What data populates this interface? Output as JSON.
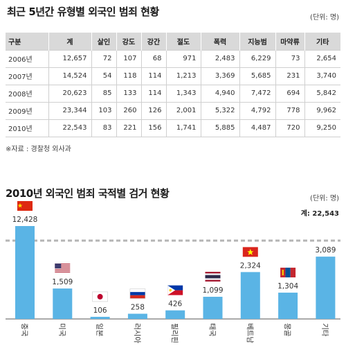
{
  "top": {
    "title": "최근 5년간 유형별 외국인 범죄 현황",
    "unit": "(단위: 명)",
    "source": "※자료 : 경찰청 외사과"
  },
  "table": {
    "headers": [
      "구분",
      "계",
      "살인",
      "강도",
      "강간",
      "절도",
      "폭력",
      "지능범",
      "마약류",
      "기타"
    ],
    "rows": [
      [
        "2006년",
        "12,657",
        "72",
        "107",
        "68",
        "971",
        "2,483",
        "6,229",
        "73",
        "2,654"
      ],
      [
        "2007년",
        "14,524",
        "54",
        "118",
        "114",
        "1,213",
        "3,369",
        "5,685",
        "231",
        "3,740"
      ],
      [
        "2008년",
        "20,623",
        "85",
        "133",
        "114",
        "1,343",
        "4,940",
        "7,472",
        "694",
        "5,842"
      ],
      [
        "2009년",
        "23,344",
        "103",
        "260",
        "126",
        "2,001",
        "5,322",
        "4,792",
        "778",
        "9,962"
      ],
      [
        "2010년",
        "22,543",
        "83",
        "221",
        "156",
        "1,741",
        "5,885",
        "4,487",
        "720",
        "9,250"
      ]
    ]
  },
  "chart_data": {
    "type": "bar",
    "title": "2010년 외국인 범죄 국적별 검거 현황",
    "unit": "(단위: 명)",
    "total_label": "계: 22,543",
    "categories": [
      "중국",
      "미국",
      "일본",
      "러시아",
      "필리핀",
      "태국",
      "베트남",
      "몽골",
      "기타"
    ],
    "values": [
      12428,
      1509,
      106,
      258,
      426,
      1099,
      2324,
      1304,
      3089
    ],
    "value_labels": [
      "12,428",
      "1,509",
      "106",
      "258",
      "426",
      "1,099",
      "2,324",
      "1,304",
      "3,089"
    ],
    "flags": [
      "china-flag",
      "usa-flag",
      "japan-flag",
      "russia-flag",
      "philippines-flag",
      "thailand-flag",
      "vietnam-flag",
      "mongolia-flag",
      ""
    ],
    "bar_color": "#5ab4e5",
    "axis_break": true,
    "ylim": [
      0,
      3600
    ]
  }
}
